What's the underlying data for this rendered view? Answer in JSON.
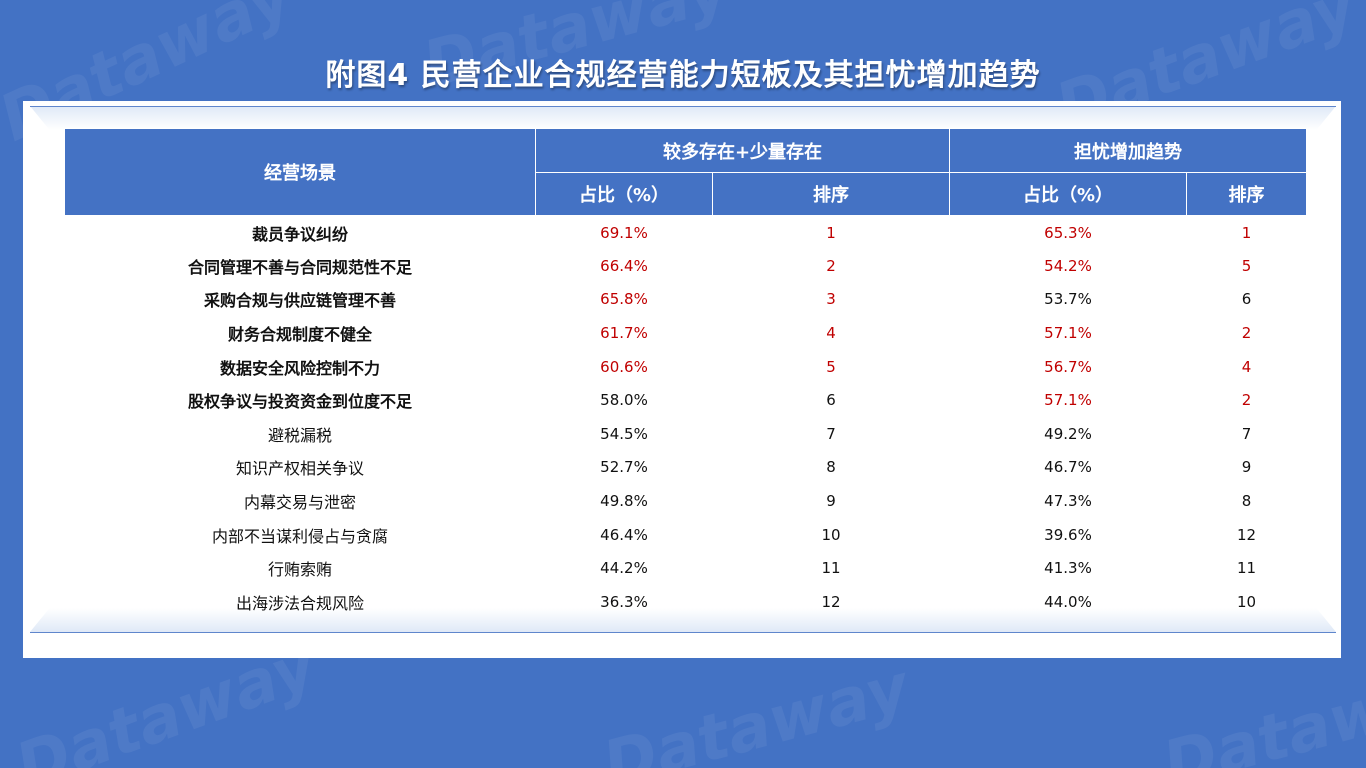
{
  "title": "附图4  民营企业合规经营能力短板及其担忧增加趋势",
  "watermark": "Dataway",
  "colors": {
    "background": "#4372c4",
    "header": "#4472c4",
    "highlight": "#c00000"
  },
  "table": {
    "scene_header": "经营场景",
    "group1_header": "较多存在+少量存在",
    "group2_header": "担忧增加趋势",
    "share_header": "占比（%）",
    "rank_header": "排序",
    "rows": [
      {
        "scene": "裁员争议纠纷",
        "bold": true,
        "exist_share": "69.1%",
        "exist_rank": "1",
        "exist_hl": true,
        "worry_share": "65.3%",
        "worry_rank": "1",
        "worry_hl": true
      },
      {
        "scene": "合同管理不善与合同规范性不足",
        "bold": true,
        "exist_share": "66.4%",
        "exist_rank": "2",
        "exist_hl": true,
        "worry_share": "54.2%",
        "worry_rank": "5",
        "worry_hl": true
      },
      {
        "scene": "采购合规与供应链管理不善",
        "bold": true,
        "exist_share": "65.8%",
        "exist_rank": "3",
        "exist_hl": true,
        "worry_share": "53.7%",
        "worry_rank": "6",
        "worry_hl": false
      },
      {
        "scene": "财务合规制度不健全",
        "bold": true,
        "exist_share": "61.7%",
        "exist_rank": "4",
        "exist_hl": true,
        "worry_share": "57.1%",
        "worry_rank": "2",
        "worry_hl": true
      },
      {
        "scene": "数据安全风险控制不力",
        "bold": true,
        "exist_share": "60.6%",
        "exist_rank": "5",
        "exist_hl": true,
        "worry_share": "56.7%",
        "worry_rank": "4",
        "worry_hl": true
      },
      {
        "scene": "股权争议与投资资金到位度不足",
        "bold": true,
        "exist_share": "58.0%",
        "exist_rank": "6",
        "exist_hl": false,
        "worry_share": "57.1%",
        "worry_rank": "2",
        "worry_hl": true
      },
      {
        "scene": "避税漏税",
        "bold": false,
        "exist_share": "54.5%",
        "exist_rank": "7",
        "exist_hl": false,
        "worry_share": "49.2%",
        "worry_rank": "7",
        "worry_hl": false
      },
      {
        "scene": "知识产权相关争议",
        "bold": false,
        "exist_share": "52.7%",
        "exist_rank": "8",
        "exist_hl": false,
        "worry_share": "46.7%",
        "worry_rank": "9",
        "worry_hl": false
      },
      {
        "scene": "内幕交易与泄密",
        "bold": false,
        "exist_share": "49.8%",
        "exist_rank": "9",
        "exist_hl": false,
        "worry_share": "47.3%",
        "worry_rank": "8",
        "worry_hl": false
      },
      {
        "scene": "内部不当谋利侵占与贪腐",
        "bold": false,
        "exist_share": "46.4%",
        "exist_rank": "10",
        "exist_hl": false,
        "worry_share": "39.6%",
        "worry_rank": "12",
        "worry_hl": false
      },
      {
        "scene": "行贿索贿",
        "bold": false,
        "exist_share": "44.2%",
        "exist_rank": "11",
        "exist_hl": false,
        "worry_share": "41.3%",
        "worry_rank": "11",
        "worry_hl": false
      },
      {
        "scene": "出海涉法合规风险",
        "bold": false,
        "exist_share": "36.3%",
        "exist_rank": "12",
        "exist_hl": false,
        "worry_share": "44.0%",
        "worry_rank": "10",
        "worry_hl": false
      }
    ]
  }
}
